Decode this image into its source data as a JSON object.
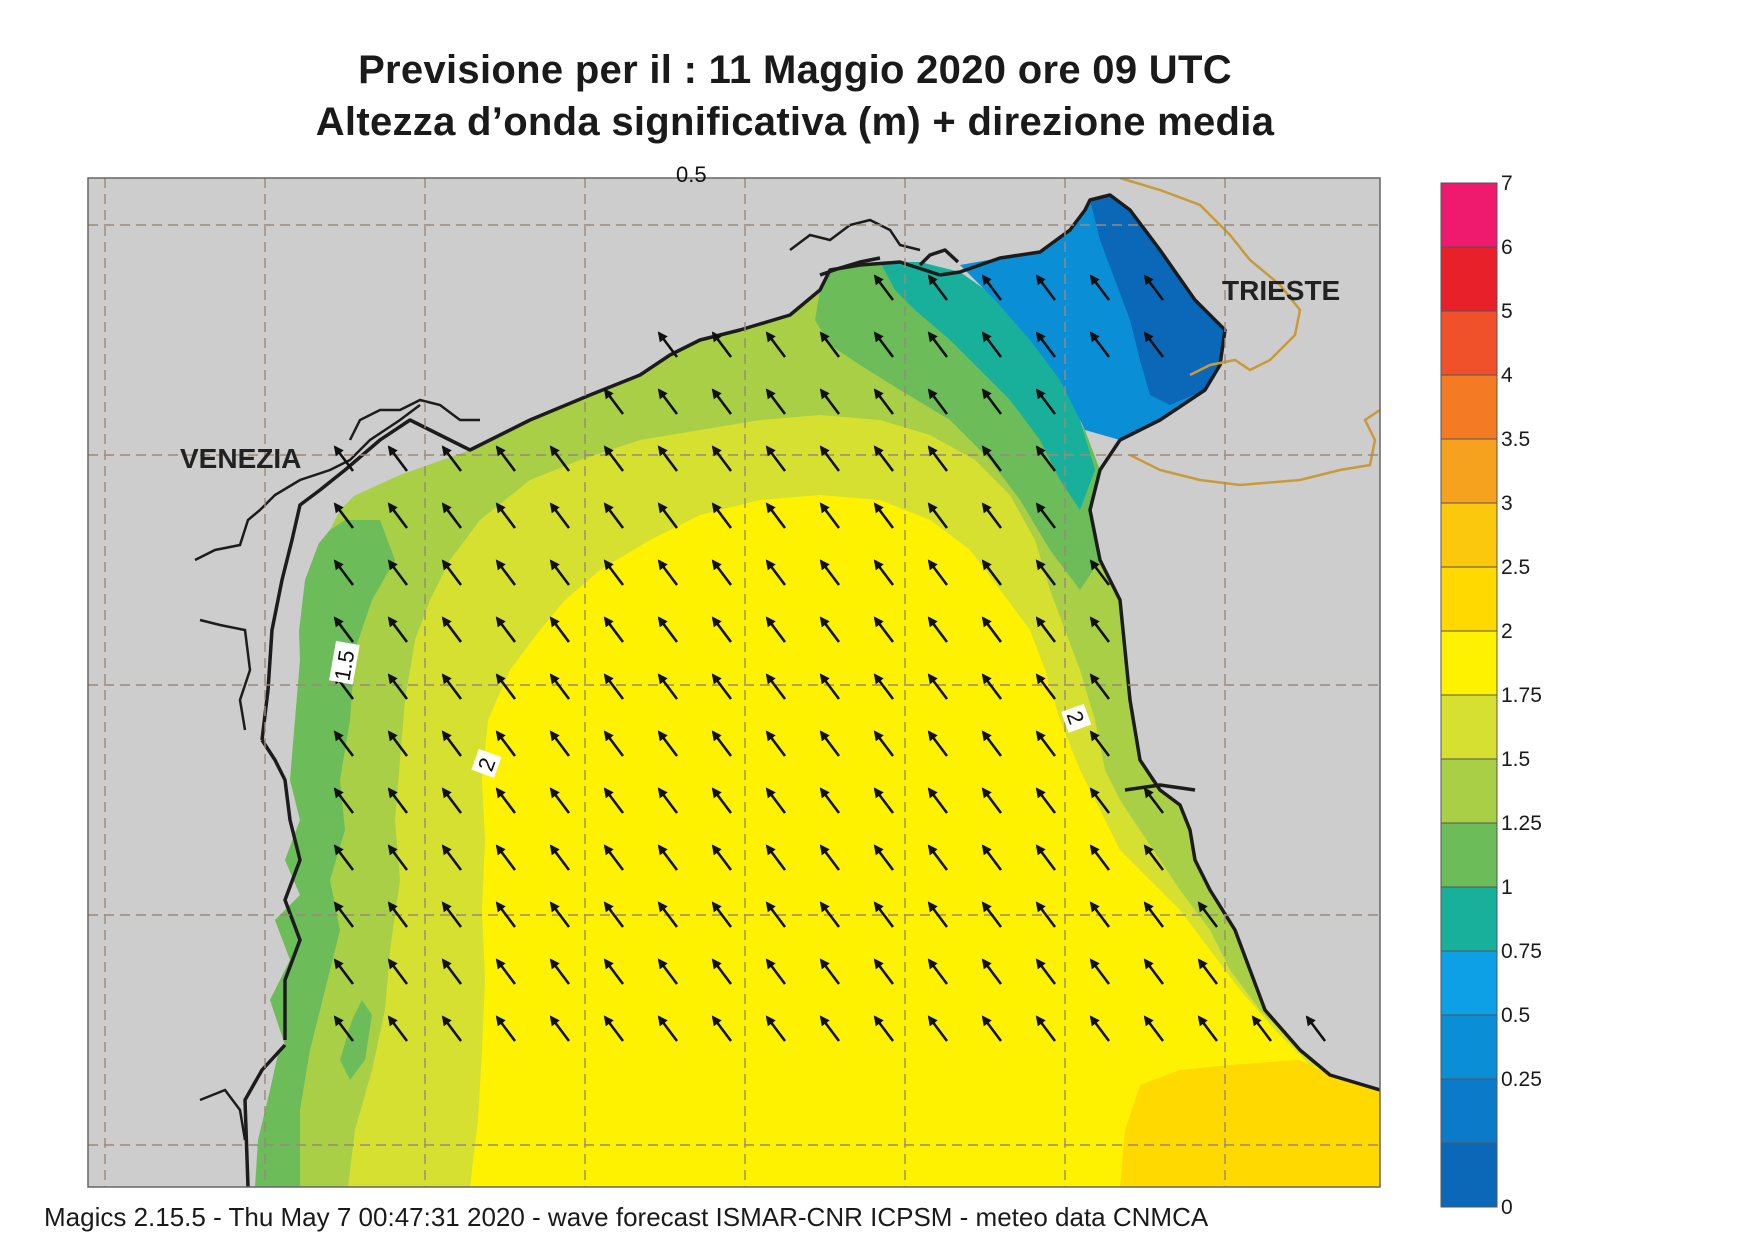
{
  "header": {
    "line1": "Previsione per il  :  11   Maggio  2020   ore 09 UTC",
    "line2": "Altezza d’onda significativa (m) + direzione media"
  },
  "map": {
    "places": [
      "VENEZIA",
      "TRIESTE"
    ],
    "contour_labels": [
      "0.5",
      "1.5",
      "2",
      "2"
    ],
    "land_color": "#cdcdcd",
    "arrow_direction": "north-west",
    "regions": [
      {
        "name": "2 - 2.5",
        "color": "#fff200"
      },
      {
        "name": "1.75 - 2",
        "color": "#d6e031"
      },
      {
        "name": "1.5 - 1.75",
        "color": "#a8cf45"
      },
      {
        "name": "1.25 - 1.5",
        "color": "#6cbd5a"
      },
      {
        "name": "1 - 1.25",
        "color": "#18b09a"
      },
      {
        "name": "0.5 - 1",
        "color": "#0a8ed6"
      },
      {
        "name": "0 - 0.5",
        "color": "#0b68b8"
      },
      {
        "name": "2.5 - 3",
        "color": "#ffd900"
      }
    ]
  },
  "colorbar": {
    "labels": [
      "7",
      "6",
      "5",
      "4",
      "3.5",
      "3",
      "2.5",
      "2",
      "1.75",
      "1.5",
      "1.25",
      "1",
      "0.75",
      "0.5",
      "0.25",
      "0"
    ],
    "colors": [
      "#ef1a6e",
      "#e8202a",
      "#f0502a",
      "#f57a24",
      "#f7a21e",
      "#fbc80e",
      "#ffd900",
      "#fff200",
      "#d6e031",
      "#a8cf45",
      "#6cbd5a",
      "#18b09a",
      "#0da0e6",
      "#0a8ed6",
      "#0b7ac8",
      "#0b68b8"
    ]
  },
  "footer": {
    "text": "Magics 2.15.5 - Thu May  7 00:47:31 2020 - wave forecast  ISMAR-CNR  ICPSM - meteo data   CNMCA"
  }
}
